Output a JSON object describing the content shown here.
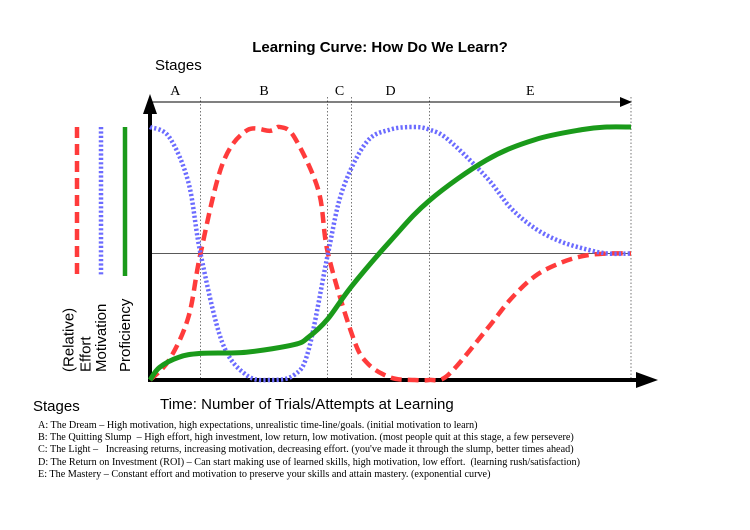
{
  "chart_data": {
    "type": "line",
    "title": "Learning Curve: How Do We Learn?",
    "top_axis_label": "Stages",
    "bottom_stages_label": "Stages",
    "xlabel": "Time: Number of Trials/Attempts at Learning",
    "stage_letters": [
      "A",
      "B",
      "C",
      "D",
      "E"
    ],
    "stage_boundaries": [
      0,
      0.105,
      0.369,
      0.419,
      0.581,
      1.0
    ],
    "y_axis_labels": [
      {
        "lines": [
          "(Relative)",
          "Effort"
        ],
        "color": "#ff3b3b"
      },
      {
        "lines": [
          "Motivation"
        ],
        "color": "#6b6bff"
      },
      {
        "lines": [
          "Proficiency"
        ],
        "color": "#1a9a1a"
      }
    ],
    "xlim": [
      0,
      1
    ],
    "ylim": [
      0,
      1
    ],
    "series": [
      {
        "name": "(Relative) Effort",
        "color": "#ff3b3b",
        "style": "dashed",
        "x": [
          0,
          0.04,
          0.08,
          0.105,
          0.15,
          0.2,
          0.25,
          0.27,
          0.3,
          0.35,
          0.37,
          0.42,
          0.45,
          0.5,
          0.55,
          0.58,
          0.62,
          0.7,
          0.75,
          0.8,
          0.85,
          0.9,
          0.95,
          1.0
        ],
        "y": [
          0,
          0.08,
          0.25,
          0.5,
          0.85,
          0.985,
          0.985,
          1.0,
          0.96,
          0.75,
          0.5,
          0.18,
          0.07,
          0.01,
          0.0,
          0.0,
          0.02,
          0.2,
          0.32,
          0.41,
          0.46,
          0.49,
          0.5,
          0.5
        ]
      },
      {
        "name": "Motivation",
        "color": "#6b6bff",
        "style": "dotted",
        "x": [
          0,
          0.04,
          0.08,
          0.105,
          0.15,
          0.2,
          0.25,
          0.3,
          0.33,
          0.37,
          0.4,
          0.45,
          0.5,
          0.55,
          0.58,
          0.62,
          0.7,
          0.75,
          0.8,
          0.85,
          0.9,
          0.95,
          1.0
        ],
        "y": [
          1.0,
          0.96,
          0.78,
          0.5,
          0.15,
          0.02,
          0.0,
          0.02,
          0.12,
          0.5,
          0.75,
          0.94,
          0.99,
          1.0,
          0.99,
          0.95,
          0.8,
          0.68,
          0.6,
          0.55,
          0.52,
          0.5,
          0.5
        ]
      },
      {
        "name": "Proficiency",
        "color": "#1a9a1a",
        "style": "solid",
        "x": [
          0,
          0.02,
          0.06,
          0.105,
          0.2,
          0.3,
          0.33,
          0.369,
          0.419,
          0.5,
          0.581,
          0.7,
          0.8,
          0.9,
          0.95,
          1.0
        ],
        "y": [
          0.0,
          0.05,
          0.09,
          0.105,
          0.11,
          0.14,
          0.17,
          0.24,
          0.37,
          0.55,
          0.71,
          0.87,
          0.95,
          0.99,
          1.0,
          1.0
        ]
      }
    ],
    "midline_y": 0.5
  },
  "descriptions": [
    "A: The Dream – High motivation, high expectations, unrealistic time-line/goals. (initial motivation to learn)",
    "B: The Quitting Slump  – High effort, high investment, low return, low motivation. (most people quit at this stage, a few persevere)",
    "C: The Light –   Increasing returns, increasing motivation, decreasing effort. (you've made it through the slump, better times ahead)",
    "D: The Return on Investment (ROI) – Can start making use of learned skills, high motivation, low effort.  (learning rush/satisfaction)",
    "E: The Mastery – Constant effort and motivation to preserve your skills and attain mastery. (exponential curve)"
  ]
}
